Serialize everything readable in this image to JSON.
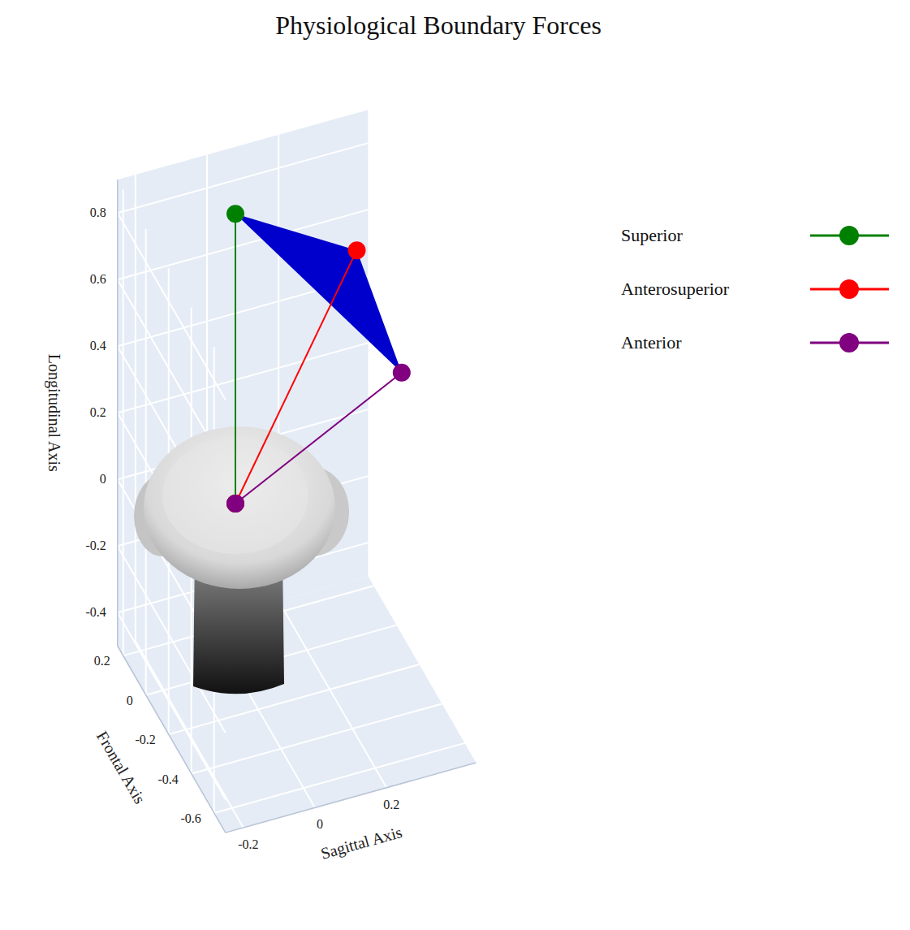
{
  "chart_data": {
    "type": "scatter3d",
    "title": "Physiological Boundary Forces",
    "xlabel": "Sagittal Axis",
    "ylabel": "Frontal Axis",
    "zlabel": "Longitudinal Axis",
    "xlim": [
      -0.25,
      0.45
    ],
    "ylim": [
      -0.7,
      0.25
    ],
    "zlim": [
      -0.5,
      0.9
    ],
    "xticks": [
      -0.2,
      0,
      0.2
    ],
    "yticks": [
      -0.6,
      -0.4,
      -0.2,
      0,
      0.2
    ],
    "zticks": [
      -0.4,
      -0.2,
      0,
      0.2,
      0.4,
      0.6,
      0.8
    ],
    "grid": true,
    "legend": "right",
    "color": "#0000cc",
    "series": [
      {
        "name": "Superior",
        "color": "#008000",
        "marker": "circle",
        "x": [
          0,
          0
        ],
        "y": [
          0,
          0
        ],
        "z": [
          0,
          0.87
        ]
      },
      {
        "name": "Anterosuperior",
        "color": "#ff0000",
        "marker": "circle",
        "x": [
          0,
          0.32
        ],
        "y": [
          0,
          -0.06
        ],
        "z": [
          0,
          0.7
        ]
      },
      {
        "name": "Anterior",
        "color": "#800080",
        "marker": "circle",
        "x": [
          0,
          0.42
        ],
        "y": [
          0,
          -0.14
        ],
        "z": [
          0,
          0.35
        ]
      }
    ]
  }
}
